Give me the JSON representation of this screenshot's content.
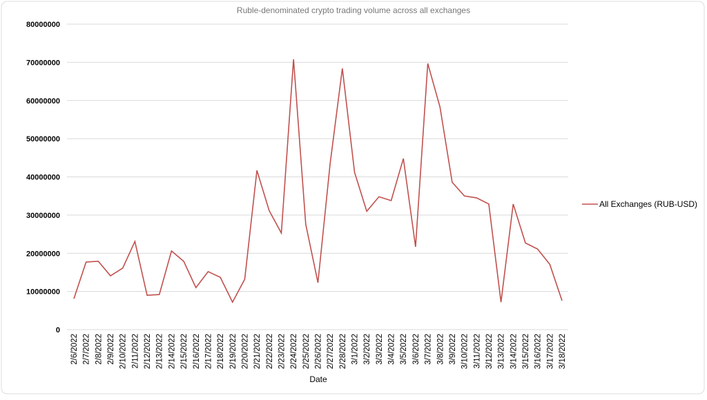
{
  "chart_data": {
    "type": "line",
    "title": "Ruble-denominated crypto trading volume across all exchanges",
    "x_label": "Date",
    "categories": [
      "2/6/2022",
      "2/7/2022",
      "2/8/2022",
      "2/9/2022",
      "2/10/2022",
      "2/11/2022",
      "2/12/2022",
      "2/13/2022",
      "2/14/2022",
      "2/15/2022",
      "2/16/2022",
      "2/17/2022",
      "2/18/2022",
      "2/19/2022",
      "2/20/2022",
      "2/21/2022",
      "2/22/2022",
      "2/23/2022",
      "2/24/2022",
      "2/25/2022",
      "2/26/2022",
      "2/27/2022",
      "2/28/2022",
      "3/1/2022",
      "3/2/2022",
      "3/3/2022",
      "3/4/2022",
      "3/5/2022",
      "3/6/2022",
      "3/7/2022",
      "3/8/2022",
      "3/9/2022",
      "3/10/2022",
      "3/11/2022",
      "3/12/2022",
      "3/13/2022",
      "3/14/2022",
      "3/15/2022",
      "3/16/2022",
      "3/17/2022",
      "3/18/2022"
    ],
    "series": [
      {
        "name": "All Exchanges (RUB-USD)",
        "color": "#c0504d",
        "values": [
          8100000,
          17700000,
          17900000,
          14100000,
          16100000,
          23100000,
          9000000,
          9200000,
          20600000,
          17900000,
          11000000,
          15200000,
          13700000,
          7200000,
          13200000,
          41700000,
          31200000,
          25300000,
          70800000,
          27600000,
          12300000,
          43500000,
          68400000,
          41200000,
          31000000,
          34800000,
          33800000,
          44800000,
          21700000,
          69700000,
          58300000,
          38600000,
          35000000,
          34500000,
          32900000,
          7200000,
          32900000,
          22700000,
          21100000,
          17100000,
          7600000
        ]
      }
    ],
    "ylim": [
      0,
      80000000
    ],
    "yticks": [
      0,
      10000000,
      20000000,
      30000000,
      40000000,
      50000000,
      60000000,
      70000000,
      80000000
    ],
    "grid": true,
    "legend": "right"
  }
}
